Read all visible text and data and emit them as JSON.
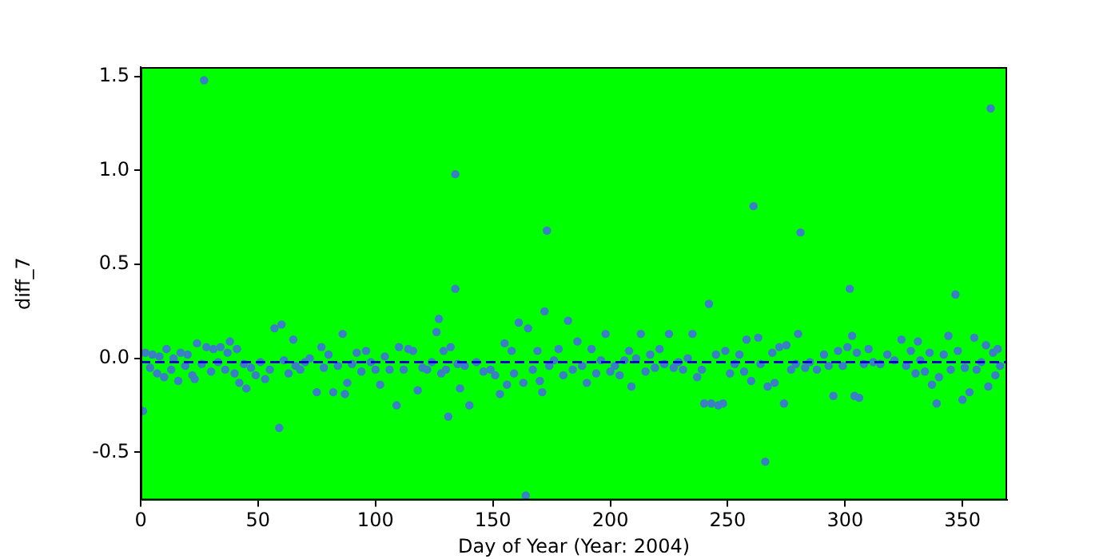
{
  "chart_data": {
    "type": "scatter",
    "xlabel": "Day of Year (Year: 2004)",
    "ylabel": "diff_7",
    "xlim": [
      0,
      369
    ],
    "xticks": [
      0,
      50,
      100,
      150,
      200,
      250,
      300,
      350
    ],
    "ylim": [
      -0.755,
      1.55
    ],
    "yticks": [
      -0.5,
      {
        "value": 0,
        "label": "0.0"
      },
      0.5,
      {
        "value": 1,
        "label": "1.0"
      },
      1.5
    ],
    "marker": "circle",
    "ref_lines": [
      {
        "axis": "y",
        "value": -0.02,
        "color": "#0000cc",
        "line_style": "dashed"
      }
    ],
    "series": [
      {
        "color": "#3a7fc4",
        "x": [
          1,
          2,
          4,
          5,
          7,
          8,
          10,
          11,
          13,
          14,
          16,
          17,
          19,
          20,
          22,
          23,
          24,
          26,
          27,
          28,
          30,
          31,
          33,
          34,
          36,
          37,
          38,
          40,
          41,
          42,
          44,
          45,
          47,
          49,
          51,
          53,
          55,
          57,
          59,
          60,
          61,
          63,
          65,
          66,
          68,
          70,
          72,
          75,
          77,
          78,
          80,
          82,
          84,
          86,
          87,
          88,
          90,
          92,
          94,
          96,
          98,
          100,
          102,
          104,
          106,
          109,
          110,
          112,
          114,
          116,
          118,
          120,
          122,
          124,
          126,
          127,
          128,
          129,
          130,
          131,
          132,
          134,
          134,
          135,
          136,
          138,
          140,
          143,
          146,
          149,
          151,
          153,
          155,
          156,
          158,
          159,
          161,
          163,
          164,
          165,
          167,
          169,
          170,
          171,
          172,
          173,
          174,
          176,
          178,
          180,
          182,
          184,
          186,
          188,
          190,
          192,
          194,
          196,
          198,
          200,
          202,
          204,
          206,
          208,
          209,
          211,
          213,
          215,
          217,
          219,
          221,
          223,
          225,
          227,
          229,
          231,
          233,
          235,
          237,
          239,
          240,
          242,
          243,
          245,
          246,
          248,
          249,
          251,
          253,
          255,
          257,
          258,
          260,
          261,
          263,
          264,
          266,
          267,
          269,
          270,
          272,
          274,
          275,
          277,
          279,
          280,
          281,
          283,
          285,
          288,
          291,
          293,
          295,
          297,
          299,
          301,
          302,
          303,
          304,
          305,
          306,
          308,
          310,
          312,
          315,
          318,
          321,
          324,
          326,
          328,
          330,
          331,
          332,
          334,
          336,
          337,
          339,
          340,
          342,
          344,
          345,
          347,
          348,
          350,
          351,
          353,
          355,
          356,
          358,
          360,
          361,
          362,
          363,
          364,
          365,
          366
        ],
        "values": [
          -0.28,
          0.03,
          -0.05,
          0.02,
          -0.08,
          0.01,
          -0.1,
          0.05,
          -0.06,
          0.0,
          -0.12,
          0.03,
          -0.04,
          0.02,
          -0.09,
          -0.11,
          0.08,
          -0.03,
          1.48,
          0.06,
          -0.07,
          0.05,
          -0.02,
          0.06,
          -0.06,
          0.03,
          0.09,
          -0.08,
          0.05,
          -0.13,
          -0.03,
          -0.16,
          -0.05,
          -0.09,
          -0.02,
          -0.11,
          -0.06,
          0.16,
          -0.37,
          0.18,
          -0.01,
          -0.08,
          0.1,
          -0.04,
          -0.06,
          -0.02,
          0.0,
          -0.18,
          0.06,
          -0.05,
          0.02,
          -0.18,
          -0.04,
          0.13,
          -0.19,
          -0.13,
          -0.03,
          0.03,
          -0.07,
          0.04,
          -0.02,
          -0.06,
          -0.14,
          0.01,
          -0.06,
          -0.25,
          0.06,
          -0.06,
          0.05,
          0.04,
          -0.17,
          -0.05,
          -0.06,
          -0.02,
          0.14,
          0.21,
          -0.08,
          0.04,
          -0.06,
          -0.31,
          0.06,
          0.98,
          0.37,
          -0.03,
          -0.16,
          -0.04,
          -0.25,
          -0.02,
          -0.07,
          -0.06,
          -0.09,
          -0.19,
          0.08,
          -0.14,
          0.04,
          -0.08,
          0.19,
          -0.13,
          -0.73,
          0.16,
          -0.06,
          0.04,
          -0.12,
          -0.18,
          0.25,
          0.68,
          -0.04,
          -0.01,
          0.05,
          -0.09,
          0.2,
          -0.06,
          0.09,
          -0.04,
          -0.13,
          0.05,
          -0.08,
          -0.01,
          0.13,
          -0.07,
          -0.04,
          -0.09,
          -0.01,
          0.04,
          -0.15,
          0.0,
          0.13,
          -0.07,
          0.02,
          -0.05,
          0.05,
          -0.03,
          0.13,
          -0.05,
          -0.02,
          -0.06,
          0.0,
          0.13,
          -0.1,
          -0.06,
          -0.24,
          0.29,
          -0.24,
          0.02,
          -0.25,
          -0.24,
          0.04,
          -0.08,
          -0.03,
          0.02,
          -0.07,
          0.1,
          -0.12,
          0.81,
          0.11,
          -0.03,
          -0.55,
          -0.15,
          0.03,
          -0.13,
          0.06,
          -0.24,
          0.07,
          -0.06,
          -0.03,
          0.13,
          0.67,
          -0.05,
          -0.02,
          -0.06,
          0.02,
          -0.04,
          -0.2,
          0.04,
          -0.04,
          0.06,
          0.37,
          0.12,
          -0.2,
          0.03,
          -0.21,
          -0.03,
          0.05,
          -0.02,
          -0.03,
          0.02,
          -0.01,
          0.1,
          -0.04,
          0.04,
          -0.08,
          0.09,
          -0.01,
          -0.07,
          0.03,
          -0.14,
          -0.24,
          -0.1,
          0.02,
          0.12,
          -0.06,
          0.34,
          0.04,
          -0.22,
          -0.05,
          -0.18,
          0.11,
          -0.06,
          -0.02,
          0.07,
          -0.15,
          1.33,
          0.03,
          -0.09,
          0.05,
          -0.04
        ]
      }
    ]
  }
}
